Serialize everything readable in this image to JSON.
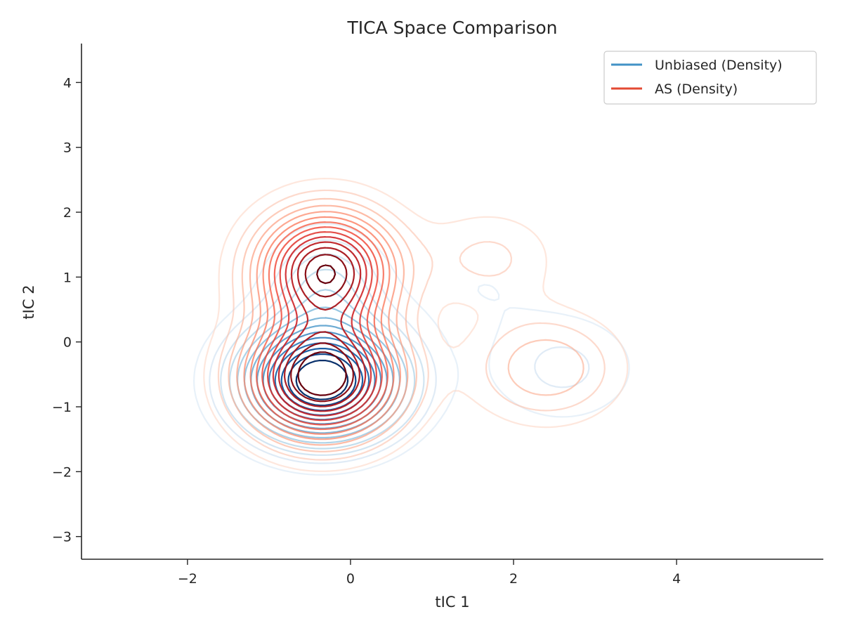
{
  "chart_data": {
    "type": "contour",
    "title": "TICA Space Comparison",
    "xlabel": "tIC 1",
    "ylabel": "tIC 2",
    "xlim": [
      -3.3,
      5.8
    ],
    "ylim": [
      -3.35,
      4.6
    ],
    "xticks": [
      -2,
      0,
      2,
      4
    ],
    "yticks": [
      -3,
      -2,
      -1,
      0,
      1,
      2,
      3,
      4
    ],
    "grid": false,
    "legend_placement": "upper-right",
    "contour_levels": 14,
    "series": [
      {
        "name": "Unbiased (Density)",
        "colormap": "Blues",
        "legend_color": "#4292c6",
        "components": [
          {
            "x": -0.35,
            "y": -0.6,
            "sx": 0.65,
            "sy": 0.6,
            "w": 1.0
          },
          {
            "x": -0.3,
            "y": 0.9,
            "sx": 0.45,
            "sy": 0.55,
            "w": 0.22
          },
          {
            "x": 2.6,
            "y": -0.4,
            "sx": 0.65,
            "sy": 0.6,
            "w": 0.12
          },
          {
            "x": 1.6,
            "y": 0.9,
            "sx": 0.6,
            "sy": 0.5,
            "w": 0.05
          }
        ]
      },
      {
        "name": "AS (Density)",
        "colormap": "Reds",
        "legend_color": "#e34a33",
        "components": [
          {
            "x": -0.35,
            "y": -0.55,
            "sx": 0.6,
            "sy": 0.6,
            "w": 1.0
          },
          {
            "x": -0.3,
            "y": 1.1,
            "sx": 0.55,
            "sy": 0.6,
            "w": 0.9
          },
          {
            "x": 2.4,
            "y": -0.4,
            "sx": 0.6,
            "sy": 0.55,
            "w": 0.22
          },
          {
            "x": 1.7,
            "y": 1.3,
            "sx": 0.55,
            "sy": 0.5,
            "w": 0.12
          }
        ]
      }
    ]
  }
}
